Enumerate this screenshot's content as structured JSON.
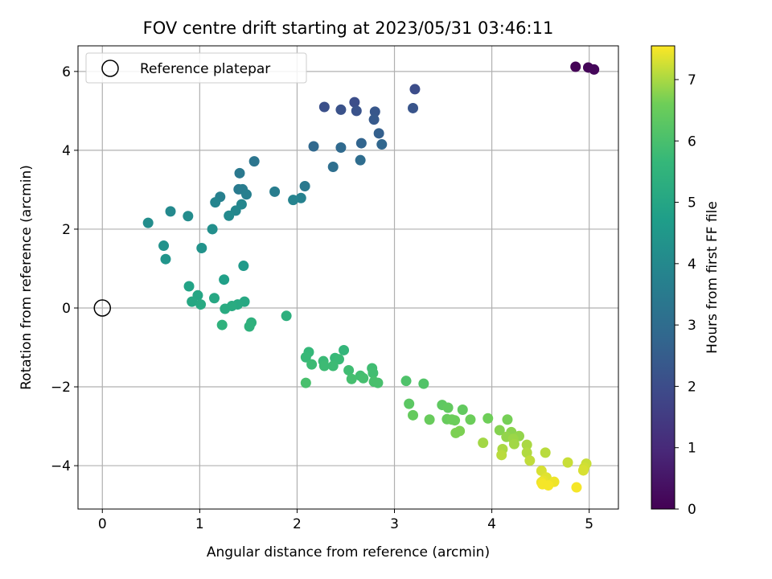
{
  "chart_data": {
    "type": "scatter",
    "title": "FOV centre drift starting at 2023/05/31 03:46:11",
    "xlabel": "Angular distance from reference (arcmin)",
    "ylabel": "Rotation from reference (arcmin)",
    "xlim": [
      -0.25,
      5.3
    ],
    "ylim": [
      -5.1,
      6.65
    ],
    "xticks": [
      0,
      1,
      2,
      3,
      4,
      5
    ],
    "xtick_labels": [
      "0",
      "1",
      "2",
      "3",
      "4",
      "5"
    ],
    "yticks": [
      -4,
      -2,
      0,
      2,
      4,
      6
    ],
    "ytick_labels": [
      "−4",
      "−2",
      "0",
      "2",
      "4",
      "6"
    ],
    "grid": true,
    "legend": {
      "position": "top-left",
      "label": "Reference platepar"
    },
    "reference_point": {
      "x": 0,
      "y": 0
    },
    "colorbar": {
      "label": "Hours from first FF file",
      "range": [
        0,
        7.55
      ],
      "ticks": [
        0,
        1,
        2,
        3,
        4,
        5,
        6,
        7
      ],
      "tick_labels": [
        "0",
        "1",
        "2",
        "3",
        "4",
        "5",
        "6",
        "7"
      ],
      "colormap": "viridis"
    },
    "points": [
      {
        "x": 4.86,
        "y": 6.12,
        "h": 0.05
      },
      {
        "x": 4.99,
        "y": 6.1,
        "h": 0.1
      },
      {
        "x": 5.05,
        "y": 6.05,
        "h": 0.15
      },
      {
        "x": 3.21,
        "y": 5.55,
        "h": 2.0
      },
      {
        "x": 2.59,
        "y": 5.22,
        "h": 2.05
      },
      {
        "x": 2.28,
        "y": 5.1,
        "h": 2.1
      },
      {
        "x": 2.45,
        "y": 5.03,
        "h": 2.15
      },
      {
        "x": 2.61,
        "y": 5.0,
        "h": 2.2
      },
      {
        "x": 3.19,
        "y": 5.07,
        "h": 2.25
      },
      {
        "x": 2.8,
        "y": 4.98,
        "h": 2.3
      },
      {
        "x": 2.79,
        "y": 4.78,
        "h": 2.4
      },
      {
        "x": 2.84,
        "y": 4.43,
        "h": 2.6
      },
      {
        "x": 2.66,
        "y": 4.18,
        "h": 2.75
      },
      {
        "x": 2.87,
        "y": 4.15,
        "h": 2.8
      },
      {
        "x": 2.17,
        "y": 4.1,
        "h": 2.85
      },
      {
        "x": 2.45,
        "y": 4.07,
        "h": 2.9
      },
      {
        "x": 2.65,
        "y": 3.75,
        "h": 3.0
      },
      {
        "x": 2.37,
        "y": 3.58,
        "h": 3.1
      },
      {
        "x": 1.56,
        "y": 3.72,
        "h": 3.3
      },
      {
        "x": 1.41,
        "y": 3.42,
        "h": 3.4
      },
      {
        "x": 2.08,
        "y": 3.09,
        "h": 3.45
      },
      {
        "x": 1.4,
        "y": 3.01,
        "h": 3.5
      },
      {
        "x": 1.44,
        "y": 3.01,
        "h": 3.55
      },
      {
        "x": 1.77,
        "y": 2.95,
        "h": 3.6
      },
      {
        "x": 1.48,
        "y": 2.88,
        "h": 3.65
      },
      {
        "x": 1.21,
        "y": 2.82,
        "h": 3.7
      },
      {
        "x": 2.04,
        "y": 2.79,
        "h": 3.75
      },
      {
        "x": 1.96,
        "y": 2.74,
        "h": 3.8
      },
      {
        "x": 1.16,
        "y": 2.68,
        "h": 3.85
      },
      {
        "x": 1.43,
        "y": 2.63,
        "h": 3.9
      },
      {
        "x": 1.37,
        "y": 2.47,
        "h": 3.95
      },
      {
        "x": 0.7,
        "y": 2.45,
        "h": 4.0
      },
      {
        "x": 1.3,
        "y": 2.34,
        "h": 4.05
      },
      {
        "x": 0.88,
        "y": 2.33,
        "h": 4.1
      },
      {
        "x": 0.47,
        "y": 2.16,
        "h": 4.15
      },
      {
        "x": 1.13,
        "y": 2.0,
        "h": 4.2
      },
      {
        "x": 0.63,
        "y": 1.58,
        "h": 4.3
      },
      {
        "x": 1.02,
        "y": 1.52,
        "h": 4.35
      },
      {
        "x": 0.65,
        "y": 1.24,
        "h": 4.4
      },
      {
        "x": 1.45,
        "y": 1.07,
        "h": 4.6
      },
      {
        "x": 1.25,
        "y": 0.72,
        "h": 4.8
      },
      {
        "x": 0.89,
        "y": 0.55,
        "h": 4.9
      },
      {
        "x": 0.98,
        "y": 0.32,
        "h": 5.0
      },
      {
        "x": 1.15,
        "y": 0.25,
        "h": 5.05
      },
      {
        "x": 0.92,
        "y": 0.16,
        "h": 5.05
      },
      {
        "x": 1.46,
        "y": 0.16,
        "h": 5.1
      },
      {
        "x": 1.01,
        "y": 0.09,
        "h": 5.15
      },
      {
        "x": 1.39,
        "y": 0.09,
        "h": 5.15
      },
      {
        "x": 1.33,
        "y": 0.05,
        "h": 5.2
      },
      {
        "x": 1.26,
        "y": -0.02,
        "h": 5.2
      },
      {
        "x": 1.89,
        "y": -0.2,
        "h": 5.35
      },
      {
        "x": 1.53,
        "y": -0.37,
        "h": 5.4
      },
      {
        "x": 1.23,
        "y": -0.43,
        "h": 5.45
      },
      {
        "x": 1.51,
        "y": -0.47,
        "h": 5.45
      },
      {
        "x": 2.48,
        "y": -1.07,
        "h": 5.6
      },
      {
        "x": 2.12,
        "y": -1.12,
        "h": 5.65
      },
      {
        "x": 2.09,
        "y": -1.25,
        "h": 5.7
      },
      {
        "x": 2.39,
        "y": -1.27,
        "h": 5.7
      },
      {
        "x": 2.43,
        "y": -1.3,
        "h": 5.75
      },
      {
        "x": 2.27,
        "y": -1.35,
        "h": 5.75
      },
      {
        "x": 2.15,
        "y": -1.43,
        "h": 5.8
      },
      {
        "x": 2.28,
        "y": -1.47,
        "h": 5.8
      },
      {
        "x": 2.37,
        "y": -1.47,
        "h": 5.8
      },
      {
        "x": 2.77,
        "y": -1.53,
        "h": 5.85
      },
      {
        "x": 2.53,
        "y": -1.58,
        "h": 5.85
      },
      {
        "x": 2.78,
        "y": -1.65,
        "h": 5.9
      },
      {
        "x": 2.65,
        "y": -1.72,
        "h": 5.9
      },
      {
        "x": 2.68,
        "y": -1.78,
        "h": 5.95
      },
      {
        "x": 2.56,
        "y": -1.8,
        "h": 5.95
      },
      {
        "x": 2.79,
        "y": -1.87,
        "h": 6.0
      },
      {
        "x": 2.83,
        "y": -1.9,
        "h": 6.0
      },
      {
        "x": 2.09,
        "y": -1.9,
        "h": 6.0
      },
      {
        "x": 3.12,
        "y": -1.85,
        "h": 6.1
      },
      {
        "x": 3.3,
        "y": -1.92,
        "h": 6.15
      },
      {
        "x": 3.15,
        "y": -2.43,
        "h": 6.3
      },
      {
        "x": 3.49,
        "y": -2.46,
        "h": 6.35
      },
      {
        "x": 3.55,
        "y": -2.53,
        "h": 6.4
      },
      {
        "x": 3.7,
        "y": -2.58,
        "h": 6.4
      },
      {
        "x": 3.19,
        "y": -2.72,
        "h": 6.45
      },
      {
        "x": 3.54,
        "y": -2.82,
        "h": 6.5
      },
      {
        "x": 3.36,
        "y": -2.83,
        "h": 6.5
      },
      {
        "x": 3.59,
        "y": -2.83,
        "h": 6.55
      },
      {
        "x": 3.62,
        "y": -2.85,
        "h": 6.55
      },
      {
        "x": 3.78,
        "y": -2.83,
        "h": 6.55
      },
      {
        "x": 3.96,
        "y": -2.8,
        "h": 6.6
      },
      {
        "x": 4.16,
        "y": -2.83,
        "h": 6.65
      },
      {
        "x": 3.67,
        "y": -3.12,
        "h": 6.7
      },
      {
        "x": 3.63,
        "y": -3.17,
        "h": 6.7
      },
      {
        "x": 4.08,
        "y": -3.1,
        "h": 6.75
      },
      {
        "x": 4.2,
        "y": -3.15,
        "h": 6.8
      },
      {
        "x": 4.28,
        "y": -3.25,
        "h": 6.85
      },
      {
        "x": 4.15,
        "y": -3.27,
        "h": 6.85
      },
      {
        "x": 4.22,
        "y": -3.32,
        "h": 6.9
      },
      {
        "x": 4.23,
        "y": -3.45,
        "h": 6.95
      },
      {
        "x": 3.91,
        "y": -3.42,
        "h": 6.95
      },
      {
        "x": 4.36,
        "y": -3.47,
        "h": 7.0
      },
      {
        "x": 4.11,
        "y": -3.58,
        "h": 7.0
      },
      {
        "x": 4.36,
        "y": -3.67,
        "h": 7.05
      },
      {
        "x": 4.55,
        "y": -3.67,
        "h": 7.1
      },
      {
        "x": 4.1,
        "y": -3.73,
        "h": 7.1
      },
      {
        "x": 4.39,
        "y": -3.87,
        "h": 7.15
      },
      {
        "x": 4.78,
        "y": -3.92,
        "h": 7.2
      },
      {
        "x": 4.97,
        "y": -3.95,
        "h": 7.2
      },
      {
        "x": 4.95,
        "y": -4.05,
        "h": 7.25
      },
      {
        "x": 4.94,
        "y": -4.12,
        "h": 7.3
      },
      {
        "x": 4.51,
        "y": -4.13,
        "h": 7.3
      },
      {
        "x": 4.56,
        "y": -4.3,
        "h": 7.35
      },
      {
        "x": 4.53,
        "y": -4.38,
        "h": 7.4
      },
      {
        "x": 4.64,
        "y": -4.41,
        "h": 7.45
      },
      {
        "x": 4.51,
        "y": -4.42,
        "h": 7.45
      },
      {
        "x": 4.52,
        "y": -4.47,
        "h": 7.5
      },
      {
        "x": 4.58,
        "y": -4.5,
        "h": 7.5
      },
      {
        "x": 4.87,
        "y": -4.55,
        "h": 7.5
      }
    ]
  }
}
